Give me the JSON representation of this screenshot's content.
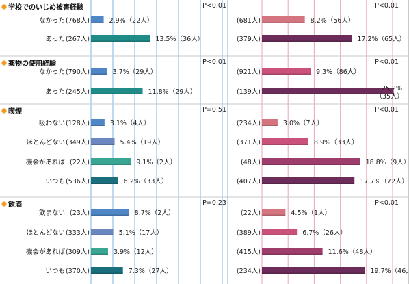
{
  "chart_data": {
    "type": "bar",
    "left_scale_max": 20,
    "right_scale_max": 25,
    "colors": {
      "left_blue": "#4f86c6",
      "left_teal": "#1f8c88",
      "left_slate": "#6c86bf",
      "left_green": "#3aa592",
      "left_dark_teal": "#1b6f7c",
      "right_pink": "#d4747f",
      "right_magenta": "#c9517c",
      "right_plum": "#9e3d6c",
      "right_purple": "#6b2c5a",
      "grid_left": "#7fb3e0",
      "grid_right": "#e7a9b6",
      "p_left": "#5a8fd0",
      "p_right": "#e06a8a",
      "dot": "#f39a1f"
    },
    "groups": [
      {
        "title": "学校でのいじめ被害経験",
        "p_left": "P<0.01",
        "p_right": "P<0.01",
        "rows": [
          {
            "label": "なかった",
            "left_n": "(768人)",
            "left_value": 2.9,
            "left_text": "2.9%（22人）",
            "left_color": "left_blue",
            "right_n": "(681人)",
            "right_value": 8.2,
            "right_text": "8.2%（56人）",
            "right_color": "right_pink"
          },
          {
            "label": "あった",
            "left_n": "(267人)",
            "left_value": 13.5,
            "left_text": "13.5%（36人）",
            "left_color": "left_teal",
            "right_n": "(379人)",
            "right_value": 17.2,
            "right_text": "17.2%（65人）",
            "right_color": "right_purple"
          }
        ]
      },
      {
        "title": "薬物の使用経験",
        "p_left": "P<0.01",
        "p_right": "P<0.01",
        "rows": [
          {
            "label": "なかった",
            "left_n": "(790人)",
            "left_value": 3.7,
            "left_text": "3.7%（29人）",
            "left_color": "left_blue",
            "right_n": "(921人)",
            "right_value": 9.3,
            "right_text": "9.3%（86人）",
            "right_color": "right_magenta"
          },
          {
            "label": "あった",
            "left_n": "(245人)",
            "left_value": 11.8,
            "left_text": "11.8%（29人）",
            "left_color": "left_teal",
            "right_n": "(139人)",
            "right_value": 25.2,
            "right_text": "25.2%",
            "right_text2": "（35人）",
            "right_color": "right_purple"
          }
        ]
      },
      {
        "title": "喫煙",
        "p_left": "P=0.51",
        "p_right": "P<0.01",
        "rows": [
          {
            "label": "吸わない",
            "left_n": "(128人)",
            "left_value": 3.1,
            "left_text": "3.1%（4人）",
            "left_color": "left_blue",
            "right_n": "(234人)",
            "right_value": 3.0,
            "right_text": "3.0%（7人）",
            "right_color": "right_pink"
          },
          {
            "label": "ほとんどない",
            "left_n": "(349人)",
            "left_value": 5.4,
            "left_text": "5.4%（19人）",
            "left_color": "left_slate",
            "right_n": "(371人)",
            "right_value": 8.9,
            "right_text": "8.9%（33人）",
            "right_color": "right_magenta"
          },
          {
            "label": "機会があれば",
            "left_n": "(22人)",
            "left_value": 9.1,
            "left_text": "9.1%（2人）",
            "left_color": "left_green",
            "right_n": "(48人)",
            "right_value": 18.8,
            "right_text": "18.8%（9人）",
            "right_color": "right_plum"
          },
          {
            "label": "いつも",
            "left_n": "(536人)",
            "left_value": 6.2,
            "left_text": "6.2%（33人）",
            "left_color": "left_dark_teal",
            "right_n": "(407人)",
            "right_value": 17.7,
            "right_text": "17.7%（72人）",
            "right_color": "right_purple"
          }
        ]
      },
      {
        "title": "飲酒",
        "p_left": "P=0.23",
        "p_right": "P<0.01",
        "rows": [
          {
            "label": "飲まない",
            "left_n": "(23人)",
            "left_value": 8.7,
            "left_text": "8.7%（2人）",
            "left_color": "left_blue",
            "right_n": "(22人)",
            "right_value": 4.5,
            "right_text": "4.5%（1人）",
            "right_color": "right_pink"
          },
          {
            "label": "ほとんどない",
            "left_n": "(333人)",
            "left_value": 5.1,
            "left_text": "5.1%（17人）",
            "left_color": "left_slate",
            "right_n": "(389人)",
            "right_value": 6.7,
            "right_text": "6.7%（26人）",
            "right_color": "right_magenta"
          },
          {
            "label": "機会があれば",
            "left_n": "(309人)",
            "left_value": 3.9,
            "left_text": "3.9%（12人）",
            "left_color": "left_green",
            "right_n": "(415人)",
            "right_value": 11.6,
            "right_text": "11.6%（48人）",
            "right_color": "right_plum"
          },
          {
            "label": "いつも",
            "left_n": "(370人)",
            "left_value": 7.3,
            "left_text": "7.3%（27人）",
            "left_color": "left_dark_teal",
            "right_n": "(234人)",
            "right_value": 19.7,
            "right_text": "19.7%（46人）",
            "right_color": "right_purple"
          }
        ]
      }
    ]
  }
}
